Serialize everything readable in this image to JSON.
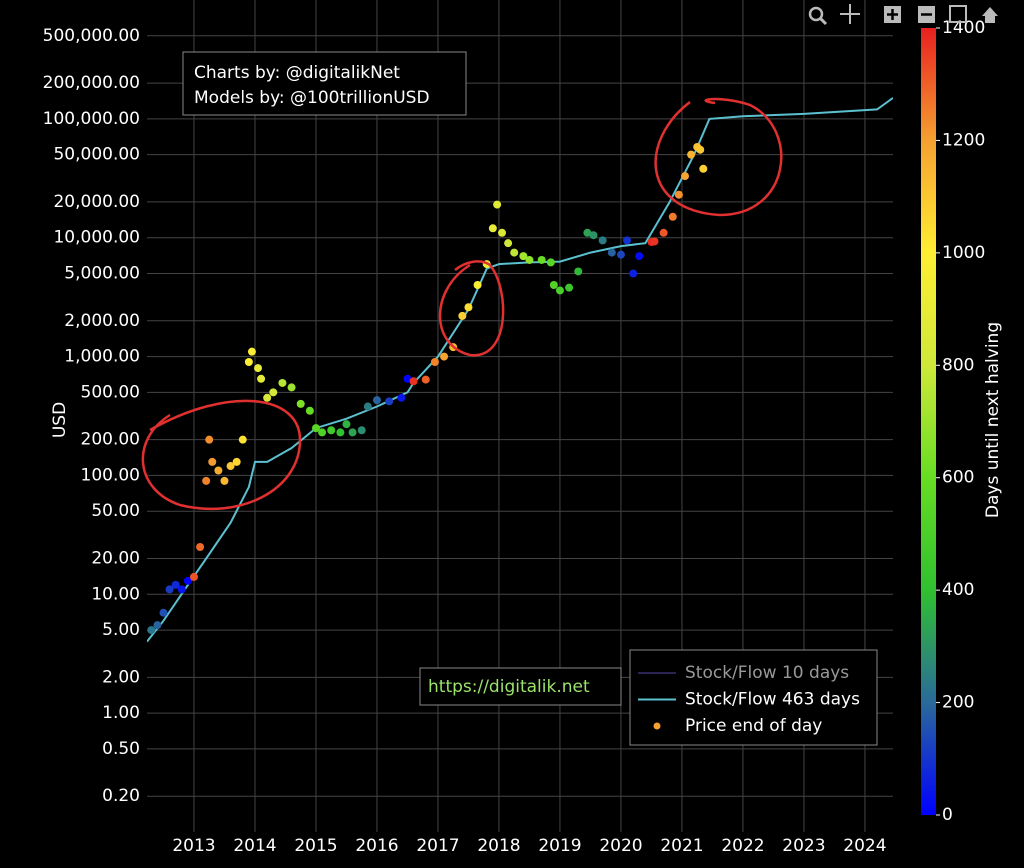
{
  "chart_data": {
    "type": "scatter",
    "y_label": "USD",
    "log_y": true,
    "grid": true,
    "ylim": [
      0.1,
      1000000
    ],
    "yticks": [
      {
        "value": 0.2,
        "label": "0.20"
      },
      {
        "value": 0.5,
        "label": "0.50"
      },
      {
        "value": 1,
        "label": "1.00"
      },
      {
        "value": 2,
        "label": "2.00"
      },
      {
        "value": 5,
        "label": "5.00"
      },
      {
        "value": 10,
        "label": "10.00"
      },
      {
        "value": 20,
        "label": "20.00"
      },
      {
        "value": 50,
        "label": "50.00"
      },
      {
        "value": 100,
        "label": "100.00"
      },
      {
        "value": 200,
        "label": "200.00"
      },
      {
        "value": 500,
        "label": "500.00"
      },
      {
        "value": 1000,
        "label": "1,000.00"
      },
      {
        "value": 2000,
        "label": "2,000.00"
      },
      {
        "value": 5000,
        "label": "5,000.00"
      },
      {
        "value": 10000,
        "label": "10,000.00"
      },
      {
        "value": 20000,
        "label": "20,000.00"
      },
      {
        "value": 50000,
        "label": "50,000.00"
      },
      {
        "value": 100000,
        "label": "100,000.00"
      },
      {
        "value": 200000,
        "label": "200,000.00"
      },
      {
        "value": 500000,
        "label": "500,000.00"
      }
    ],
    "xlim": [
      2012.23,
      2024.46
    ],
    "xticks": [
      2013,
      2014,
      2015,
      2016,
      2017,
      2018,
      2019,
      2020,
      2021,
      2022,
      2023,
      2024
    ],
    "annotations": [
      "Charts by: @digitalikNet",
      "Models by: @100trillionUSD",
      "https://digitalik.net"
    ],
    "legend_position": "bottom-right",
    "series": [
      {
        "name": "Stock/Flow 10 days",
        "type": "line",
        "color": "#2a2456"
      },
      {
        "name": "Stock/Flow 463 days",
        "type": "line",
        "color": "#5bc0d0",
        "x": [
          2012.23,
          2012.5,
          2012.9,
          2013.2,
          2013.6,
          2013.9,
          2014.0,
          2014.2,
          2014.6,
          2015.0,
          2015.5,
          2016.0,
          2016.5,
          2016.6,
          2017.0,
          2017.5,
          2017.8,
          2018.0,
          2018.5,
          2019.0,
          2019.5,
          2020.0,
          2020.4,
          2020.8,
          2021.2,
          2021.45,
          2022.0,
          2023.0,
          2024.2,
          2024.46
        ],
        "values": [
          4,
          6,
          12,
          20,
          40,
          80,
          130,
          130,
          170,
          250,
          300,
          380,
          500,
          600,
          1000,
          2500,
          5500,
          6000,
          6200,
          6300,
          7500,
          8500,
          9000,
          20000,
          50000,
          100000,
          105000,
          110000,
          120000,
          150000
        ]
      },
      {
        "name": "Price end of day",
        "type": "scatter",
        "color": "#f5a030",
        "x": [
          2012.3,
          2012.4,
          2012.5,
          2012.6,
          2012.7,
          2012.8,
          2012.9,
          2013.0,
          2013.1,
          2013.2,
          2013.25,
          2013.3,
          2013.4,
          2013.5,
          2013.6,
          2013.7,
          2013.8,
          2013.9,
          2013.95,
          2014.05,
          2014.1,
          2014.2,
          2014.3,
          2014.45,
          2014.6,
          2014.75,
          2014.9,
          2015.0,
          2015.1,
          2015.25,
          2015.4,
          2015.5,
          2015.6,
          2015.75,
          2015.85,
          2016.0,
          2016.2,
          2016.4,
          2016.5,
          2016.6,
          2016.8,
          2016.95,
          2017.1,
          2017.25,
          2017.4,
          2017.5,
          2017.65,
          2017.8,
          2017.9,
          2017.97,
          2018.05,
          2018.15,
          2018.25,
          2018.4,
          2018.5,
          2018.7,
          2018.85,
          2018.9,
          2019.0,
          2019.15,
          2019.3,
          2019.45,
          2019.55,
          2019.7,
          2019.85,
          2020.0,
          2020.1,
          2020.2,
          2020.3,
          2020.5,
          2020.55,
          2020.7,
          2020.85,
          2020.95,
          2021.05,
          2021.15,
          2021.25,
          2021.3,
          2021.35
        ],
        "values": [
          5,
          5.5,
          7,
          11,
          12,
          11,
          13,
          14,
          25,
          90,
          200,
          130,
          110,
          90,
          120,
          130,
          200,
          900,
          1100,
          800,
          650,
          450,
          500,
          600,
          550,
          400,
          350,
          250,
          230,
          240,
          230,
          270,
          230,
          240,
          380,
          430,
          420,
          450,
          650,
          620,
          640,
          900,
          1000,
          1200,
          2200,
          2600,
          4000,
          6000,
          12000,
          19000,
          11000,
          9000,
          7500,
          7000,
          6500,
          6500,
          6200,
          4000,
          3600,
          3800,
          5200,
          11000,
          10500,
          9500,
          7500,
          7200,
          9500,
          5000,
          7000,
          9200,
          9300,
          11000,
          15000,
          23000,
          33000,
          50000,
          58000,
          55000,
          38000
        ],
        "color_values": [
          223,
          186,
          150,
          113,
          77,
          40,
          4,
          1321,
          1285,
          1248,
          1230,
          1212,
          1175,
          1139,
          1102,
          1066,
          1030,
          993,
          975,
          902,
          883,
          847,
          810,
          756,
          701,
          646,
          591,
          555,
          518,
          464,
          409,
          372,
          336,
          281,
          245,
          190,
          117,
          44,
          7,
          1372,
          1299,
          1245,
          1190,
          1135,
          1080,
          1044,
          989,
          934,
          898,
          872,
          843,
          807,
          770,
          715,
          679,
          606,
          551,
          533,
          496,
          442,
          387,
          332,
          296,
          241,
          186,
          131,
          95,
          58,
          22,
          1387,
          1369,
          1314,
          1259,
          1223,
          1186,
          1150,
          1113,
          1095,
          1077
        ]
      }
    ],
    "colorbar": {
      "title": "Days until next halving",
      "lim": [
        0,
        1400
      ],
      "ticks": [
        0,
        200,
        400,
        600,
        800,
        1000,
        1200,
        1400
      ],
      "colorscale": [
        "#0000ff",
        "#2a6a9a",
        "#30c030",
        "#66dd22",
        "#cfe83a",
        "#ffee33",
        "#f5a030",
        "#e82020"
      ]
    }
  }
}
